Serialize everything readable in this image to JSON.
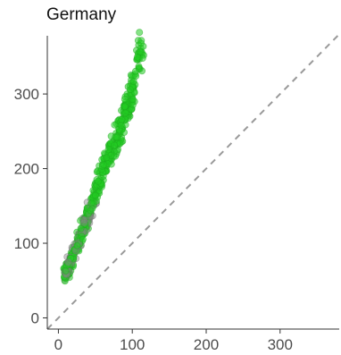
{
  "chart_data": {
    "type": "scatter",
    "title": "Germany",
    "xlabel": "",
    "ylabel": "",
    "xlim": [
      -15,
      380
    ],
    "ylim": [
      -15,
      378
    ],
    "x_ticks": [
      "0",
      "100",
      "200",
      "300"
    ],
    "x_tick_values": [
      0,
      100,
      200,
      300
    ],
    "y_ticks": [
      "0",
      "100",
      "200",
      "300"
    ],
    "y_tick_values": [
      0,
      100,
      200,
      300
    ],
    "grid": false,
    "reference_line": {
      "slope": 1,
      "intercept": 0,
      "style": "dashed",
      "color": "#999999"
    },
    "series": [
      {
        "color": "#22cc22",
        "shade_color": "#888888",
        "point_count": 560,
        "trend": {
          "x_range": [
            10,
            115
          ],
          "y_at_x": [
            [
              10,
              58
            ],
            [
              20,
              85
            ],
            [
              30,
              110
            ],
            [
              45,
              150
            ],
            [
              60,
              200
            ],
            [
              80,
              240
            ],
            [
              100,
              300
            ],
            [
              110,
              358
            ]
          ]
        }
      }
    ]
  }
}
